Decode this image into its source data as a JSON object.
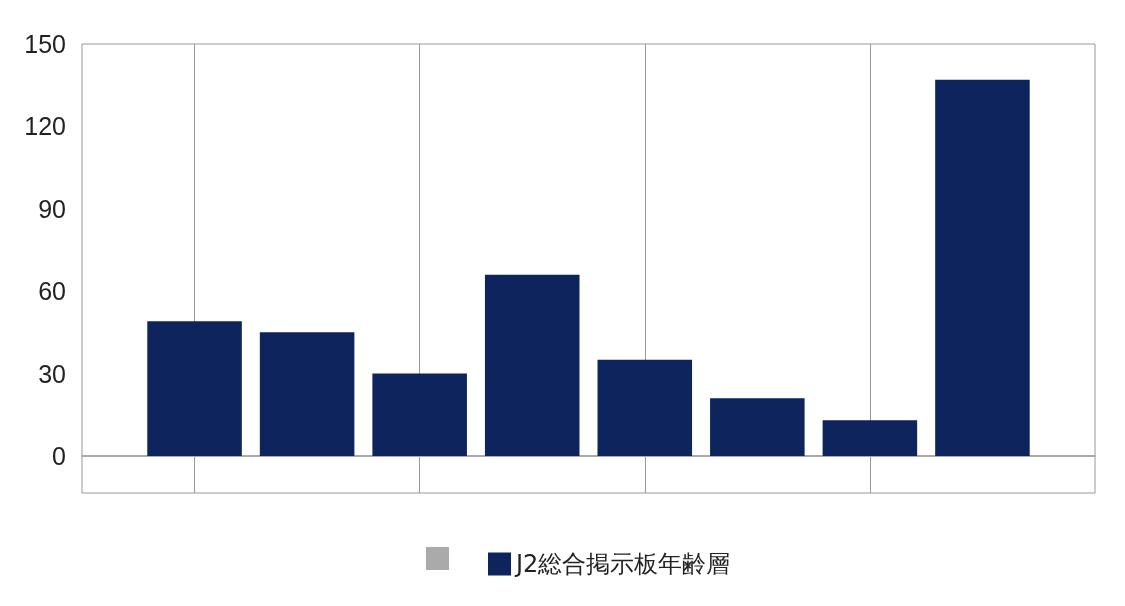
{
  "chart_data": {
    "type": "bar",
    "categories": [
      null,
      null,
      null,
      null,
      null,
      null,
      null,
      null
    ],
    "series": [
      {
        "name": "J2総合掲示板年齢層",
        "color": "#0d255c",
        "values": [
          49,
          45,
          30,
          66,
          35,
          21,
          13,
          137
        ]
      }
    ],
    "ylim": [
      -13.5,
      150
    ],
    "yticks": [
      0,
      30,
      60,
      90,
      120,
      150
    ],
    "grid": "x",
    "legend": "bottom"
  }
}
